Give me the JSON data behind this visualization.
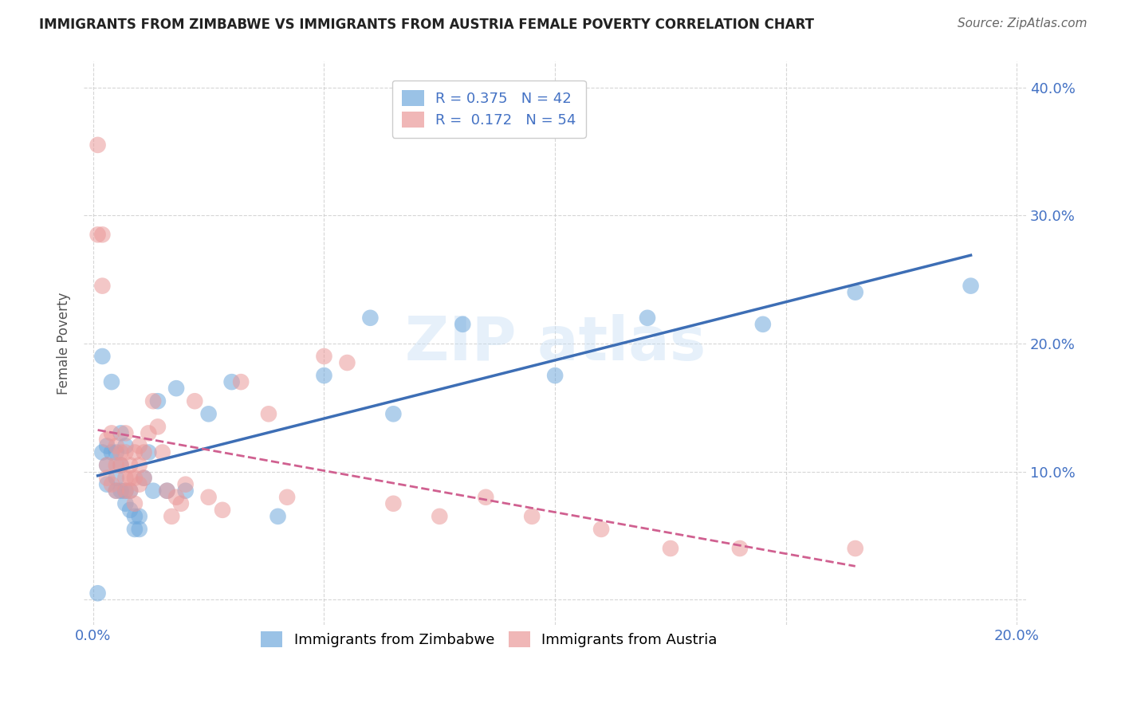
{
  "title": "IMMIGRANTS FROM ZIMBABWE VS IMMIGRANTS FROM AUSTRIA FEMALE POVERTY CORRELATION CHART",
  "source": "Source: ZipAtlas.com",
  "ylabel": "Female Poverty",
  "xlim": [
    -0.002,
    0.202
  ],
  "ylim": [
    -0.02,
    0.42
  ],
  "x_ticks": [
    0.0,
    0.05,
    0.1,
    0.15,
    0.2
  ],
  "y_ticks": [
    0.0,
    0.1,
    0.2,
    0.3,
    0.4
  ],
  "zimbabwe_color": "#6fa8dc",
  "austria_color": "#ea9999",
  "zimbabwe_line_color": "#3d6eb5",
  "austria_line_color": "#d06090",
  "R_zimbabwe": 0.375,
  "N_zimbabwe": 42,
  "R_austria": 0.172,
  "N_austria": 54,
  "zimbabwe_x": [
    0.001,
    0.002,
    0.002,
    0.003,
    0.003,
    0.003,
    0.004,
    0.004,
    0.005,
    0.005,
    0.005,
    0.006,
    0.006,
    0.006,
    0.007,
    0.007,
    0.007,
    0.008,
    0.008,
    0.009,
    0.009,
    0.01,
    0.01,
    0.011,
    0.012,
    0.013,
    0.014,
    0.016,
    0.018,
    0.02,
    0.025,
    0.03,
    0.04,
    0.05,
    0.06,
    0.065,
    0.08,
    0.1,
    0.12,
    0.145,
    0.165,
    0.19
  ],
  "zimbabwe_y": [
    0.005,
    0.19,
    0.115,
    0.12,
    0.105,
    0.09,
    0.17,
    0.115,
    0.115,
    0.095,
    0.085,
    0.13,
    0.105,
    0.085,
    0.12,
    0.085,
    0.075,
    0.085,
    0.07,
    0.065,
    0.055,
    0.065,
    0.055,
    0.095,
    0.115,
    0.085,
    0.155,
    0.085,
    0.165,
    0.085,
    0.145,
    0.17,
    0.065,
    0.175,
    0.22,
    0.145,
    0.215,
    0.175,
    0.22,
    0.215,
    0.24,
    0.245
  ],
  "austria_x": [
    0.001,
    0.001,
    0.002,
    0.002,
    0.003,
    0.003,
    0.003,
    0.004,
    0.004,
    0.005,
    0.005,
    0.005,
    0.006,
    0.006,
    0.007,
    0.007,
    0.007,
    0.007,
    0.008,
    0.008,
    0.008,
    0.009,
    0.009,
    0.009,
    0.01,
    0.01,
    0.01,
    0.011,
    0.011,
    0.012,
    0.013,
    0.014,
    0.015,
    0.016,
    0.017,
    0.018,
    0.019,
    0.02,
    0.022,
    0.025,
    0.028,
    0.032,
    0.038,
    0.042,
    0.05,
    0.055,
    0.065,
    0.075,
    0.085,
    0.095,
    0.11,
    0.125,
    0.14,
    0.165
  ],
  "austria_y": [
    0.285,
    0.355,
    0.285,
    0.245,
    0.105,
    0.125,
    0.095,
    0.09,
    0.13,
    0.12,
    0.105,
    0.085,
    0.115,
    0.105,
    0.115,
    0.095,
    0.085,
    0.13,
    0.105,
    0.095,
    0.085,
    0.115,
    0.095,
    0.075,
    0.12,
    0.105,
    0.09,
    0.115,
    0.095,
    0.13,
    0.155,
    0.135,
    0.115,
    0.085,
    0.065,
    0.08,
    0.075,
    0.09,
    0.155,
    0.08,
    0.07,
    0.17,
    0.145,
    0.08,
    0.19,
    0.185,
    0.075,
    0.065,
    0.08,
    0.065,
    0.055,
    0.04,
    0.04,
    0.04
  ]
}
